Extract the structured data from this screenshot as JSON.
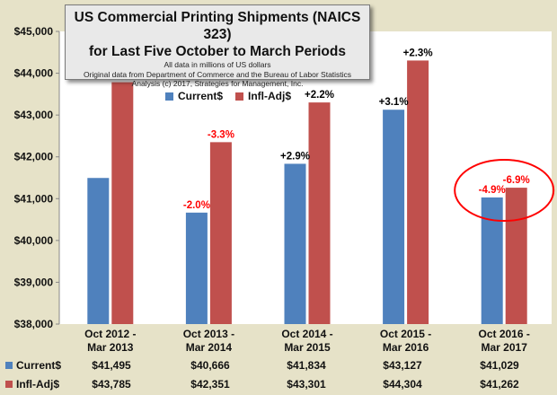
{
  "chart_data": {
    "type": "bar",
    "title": "US Commercial Printing Shipments (NAICS 323)",
    "title_line2": "for Last Five October to March Periods",
    "subtitle_lines": [
      "All data in millions of US dollars",
      "Original data from Department of Commerce and the Bureau of Labor Statistics",
      "Analysis (c) 2017, Strategies for Management, Inc."
    ],
    "categories_line1": [
      "Oct 2012 -",
      "Oct 2013 -",
      "Oct 2014 -",
      "Oct 2015 -",
      "Oct 2016 -"
    ],
    "categories_line2": [
      "Mar 2013",
      "Mar 2014",
      "Mar 2015",
      "Mar 2016",
      "Mar 2017"
    ],
    "ylim": [
      38000,
      45000
    ],
    "yticks": [
      38000,
      39000,
      40000,
      41000,
      42000,
      43000,
      44000,
      45000
    ],
    "ytick_labels": [
      "$38,000",
      "$39,000",
      "$40,000",
      "$41,000",
      "$42,000",
      "$43,000",
      "$44,000",
      "$45,000"
    ],
    "grid": false,
    "legend_position": "top-center",
    "series": [
      {
        "name": "Current$",
        "color": "#4f81bd",
        "values": [
          41495,
          40666,
          41834,
          43127,
          41029
        ],
        "table_values": [
          "$41,495",
          "$40,666",
          "$41,834",
          "$43,127",
          "$41,029"
        ],
        "data_labels": [
          "",
          "-2.0%",
          "+2.9%",
          "+3.1%",
          "-4.9%"
        ],
        "label_colors": [
          "#000000",
          "#ff0000",
          "#000000",
          "#000000",
          "#ff0000"
        ]
      },
      {
        "name": "Infl-Adj$",
        "color": "#c0504d",
        "values": [
          43785,
          42351,
          43301,
          44304,
          41262
        ],
        "table_values": [
          "$43,785",
          "$42,351",
          "$43,301",
          "$44,304",
          "$41,262"
        ],
        "data_labels": [
          "",
          "-3.3%",
          "+2.2%",
          "+2.3%",
          "-6.9%"
        ],
        "label_colors": [
          "#000000",
          "#ff0000",
          "#000000",
          "#000000",
          "#ff0000"
        ]
      }
    ],
    "highlight_circle": {
      "category_index": 4,
      "color": "#ff0000"
    }
  }
}
